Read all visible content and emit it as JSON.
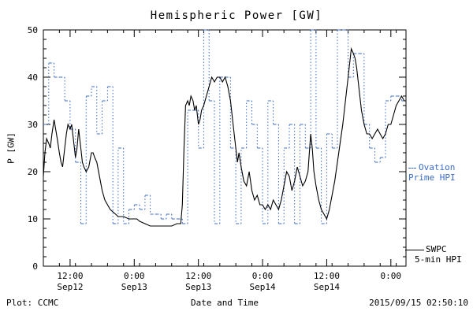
{
  "title": "Hemispheric Power [GW]",
  "ylabel": "P [GW]",
  "xlabel": "Date and Time",
  "footer_left": "Plot: CCMC",
  "footer_right": "2015/09/15 02:50:10",
  "legend": {
    "ovation": {
      "line1": "Ovation",
      "line2": "Prime HPI"
    },
    "swpc": {
      "line1": "SWPC",
      "line2": "5-min HPI"
    }
  },
  "colors": {
    "ovation": "#3b6cc7",
    "swpc": "#000000",
    "axis": "#000000",
    "background": "#ffffff"
  },
  "chart_data": {
    "type": "line",
    "title": "Hemispheric Power [GW]",
    "xlabel": "Date and Time",
    "ylabel": "P [GW]",
    "ylim": [
      0,
      50
    ],
    "xlim": [
      0,
      67.83
    ],
    "x_unit": "hours since 2015-09-12 07:00",
    "grid": false,
    "legend_position": "right-outside",
    "y_ticks": [
      0,
      10,
      20,
      30,
      40,
      50
    ],
    "x_ticks": [
      {
        "t": 5,
        "label": "12:00",
        "date": "Sep12"
      },
      {
        "t": 17,
        "label": "0:00",
        "date": "Sep13"
      },
      {
        "t": 29,
        "label": "12:00",
        "date": "Sep13"
      },
      {
        "t": 41,
        "label": "0:00",
        "date": "Sep14"
      },
      {
        "t": 53,
        "label": "12:00",
        "date": "Sep14"
      },
      {
        "t": 65,
        "label": "0:00",
        "date": ""
      }
    ],
    "series": [
      {
        "name": "Ovation Prime HPI",
        "style": "step-dotted",
        "color": "#3b6cc7",
        "step_start_t": 0,
        "step_hours": 1,
        "hourly_values": [
          30,
          43,
          40,
          40,
          35,
          29,
          22,
          9,
          36,
          38,
          28,
          35,
          38,
          9,
          25,
          9,
          12,
          13,
          12,
          15,
          11,
          11,
          10,
          11,
          10,
          10,
          9,
          33,
          33,
          25,
          50,
          35,
          9,
          40,
          40,
          25,
          9,
          25,
          35,
          30,
          25,
          9,
          35,
          30,
          9,
          25,
          30,
          9,
          30,
          25,
          50,
          25,
          9,
          28,
          25,
          50,
          50,
          40,
          45,
          45,
          30,
          25,
          22,
          23,
          35,
          36,
          36,
          35
        ]
      },
      {
        "name": "SWPC 5-min HPI",
        "style": "solid-line",
        "color": "#000000",
        "points": [
          [
            0,
            19
          ],
          [
            0.3,
            24
          ],
          [
            0.6,
            27
          ],
          [
            1,
            26
          ],
          [
            1.3,
            25
          ],
          [
            1.6,
            28
          ],
          [
            2,
            31
          ],
          [
            2.3,
            29
          ],
          [
            2.6,
            27
          ],
          [
            3,
            24
          ],
          [
            3.3,
            22
          ],
          [
            3.6,
            21
          ],
          [
            4,
            25
          ],
          [
            4.3,
            28
          ],
          [
            4.6,
            30
          ],
          [
            5,
            29
          ],
          [
            5.3,
            30
          ],
          [
            5.6,
            27
          ],
          [
            6,
            23
          ],
          [
            6.3,
            25
          ],
          [
            6.6,
            29
          ],
          [
            7,
            25
          ],
          [
            7.3,
            22
          ],
          [
            7.6,
            21
          ],
          [
            8,
            20
          ],
          [
            8.5,
            21
          ],
          [
            9,
            24
          ],
          [
            9.3,
            24
          ],
          [
            9.6,
            23
          ],
          [
            10,
            22
          ],
          [
            10.5,
            19
          ],
          [
            11,
            16
          ],
          [
            11.5,
            14
          ],
          [
            12,
            13
          ],
          [
            12.5,
            12
          ],
          [
            13,
            11.5
          ],
          [
            13.5,
            11
          ],
          [
            14,
            10.5
          ],
          [
            15,
            10.5
          ],
          [
            16,
            10
          ],
          [
            17,
            10
          ],
          [
            17.5,
            10
          ],
          [
            18,
            9.5
          ],
          [
            19,
            9
          ],
          [
            20,
            8.5
          ],
          [
            21,
            8.5
          ],
          [
            22,
            8.5
          ],
          [
            23,
            8.5
          ],
          [
            24,
            8.5
          ],
          [
            25,
            9
          ],
          [
            25.7,
            9
          ],
          [
            26,
            13
          ],
          [
            26.3,
            25
          ],
          [
            26.6,
            34
          ],
          [
            27,
            35
          ],
          [
            27.3,
            34
          ],
          [
            27.6,
            36
          ],
          [
            28,
            35
          ],
          [
            28.3,
            33
          ],
          [
            28.6,
            34
          ],
          [
            29,
            30
          ],
          [
            29.3,
            31
          ],
          [
            29.6,
            33
          ],
          [
            30,
            34
          ],
          [
            30.5,
            36
          ],
          [
            31,
            38
          ],
          [
            31.5,
            40
          ],
          [
            32,
            39
          ],
          [
            32.5,
            40
          ],
          [
            33,
            40
          ],
          [
            33.5,
            39
          ],
          [
            34,
            40
          ],
          [
            34.5,
            38
          ],
          [
            35,
            35
          ],
          [
            35.5,
            30
          ],
          [
            36,
            25
          ],
          [
            36.3,
            22
          ],
          [
            36.6,
            24
          ],
          [
            37,
            21
          ],
          [
            37.5,
            18
          ],
          [
            38,
            17
          ],
          [
            38.5,
            20
          ],
          [
            39,
            16
          ],
          [
            39.5,
            14
          ],
          [
            40,
            15
          ],
          [
            40.5,
            13
          ],
          [
            41,
            13
          ],
          [
            41.5,
            12
          ],
          [
            42,
            13
          ],
          [
            42.5,
            12
          ],
          [
            43,
            14
          ],
          [
            43.5,
            13
          ],
          [
            44,
            12
          ],
          [
            44.5,
            14
          ],
          [
            45,
            17
          ],
          [
            45.5,
            20
          ],
          [
            46,
            19
          ],
          [
            46.5,
            16
          ],
          [
            47,
            18
          ],
          [
            47.5,
            21
          ],
          [
            48,
            19
          ],
          [
            48.5,
            17
          ],
          [
            49,
            18
          ],
          [
            49.5,
            20
          ],
          [
            50,
            28
          ],
          [
            50.3,
            25
          ],
          [
            50.6,
            20
          ],
          [
            51,
            17
          ],
          [
            51.5,
            14
          ],
          [
            52,
            12
          ],
          [
            52.5,
            11
          ],
          [
            53,
            10
          ],
          [
            53.5,
            12
          ],
          [
            54,
            15
          ],
          [
            54.5,
            18
          ],
          [
            55,
            22
          ],
          [
            55.5,
            26
          ],
          [
            56,
            30
          ],
          [
            56.5,
            35
          ],
          [
            57,
            40
          ],
          [
            57.3,
            43
          ],
          [
            57.6,
            46
          ],
          [
            58,
            45
          ],
          [
            58.3,
            44
          ],
          [
            58.6,
            42
          ],
          [
            59,
            38
          ],
          [
            59.5,
            33
          ],
          [
            60,
            30
          ],
          [
            60.5,
            28
          ],
          [
            61,
            28
          ],
          [
            61.5,
            27
          ],
          [
            62,
            28
          ],
          [
            62.5,
            29
          ],
          [
            63,
            28
          ],
          [
            63.5,
            27
          ],
          [
            64,
            28
          ],
          [
            64.5,
            30
          ],
          [
            65,
            30
          ],
          [
            65.5,
            32
          ],
          [
            66,
            34
          ],
          [
            66.5,
            35
          ],
          [
            67,
            36
          ],
          [
            67.5,
            35
          ],
          [
            67.8,
            35
          ]
        ]
      }
    ]
  }
}
